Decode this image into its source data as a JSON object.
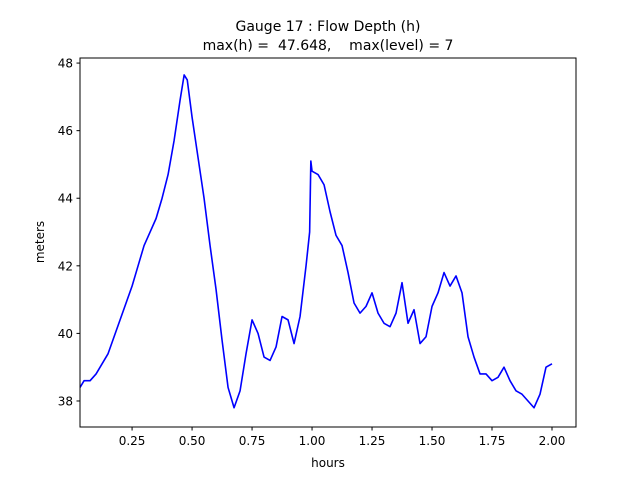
{
  "chart_data": {
    "type": "line",
    "title": "Gauge 17 : Flow Depth (h)",
    "subtitle": "max(h) =  47.648,    max(level) = 7",
    "x_label": "hours",
    "y_label": "meters",
    "color": "#0000ff",
    "x": [
      0.033,
      0.05,
      0.075,
      0.1,
      0.125,
      0.15,
      0.175,
      0.2,
      0.225,
      0.25,
      0.275,
      0.3,
      0.325,
      0.35,
      0.375,
      0.4,
      0.425,
      0.45,
      0.467,
      0.48,
      0.5,
      0.525,
      0.55,
      0.575,
      0.6,
      0.625,
      0.65,
      0.675,
      0.7,
      0.725,
      0.75,
      0.775,
      0.8,
      0.825,
      0.85,
      0.875,
      0.9,
      0.925,
      0.95,
      0.975,
      0.99,
      0.995,
      1.0,
      1.025,
      1.05,
      1.075,
      1.1,
      1.125,
      1.15,
      1.175,
      1.2,
      1.225,
      1.25,
      1.275,
      1.3,
      1.325,
      1.35,
      1.375,
      1.4,
      1.425,
      1.45,
      1.475,
      1.5,
      1.525,
      1.55,
      1.575,
      1.6,
      1.625,
      1.65,
      1.675,
      1.7,
      1.725,
      1.75,
      1.775,
      1.8,
      1.825,
      1.85,
      1.875,
      1.9,
      1.925,
      1.95,
      1.975,
      2.0
    ],
    "values": [
      38.4,
      38.6,
      38.6,
      38.8,
      39.1,
      39.4,
      39.9,
      40.4,
      40.9,
      41.4,
      42.0,
      42.6,
      43.0,
      43.4,
      44.0,
      44.7,
      45.7,
      46.9,
      47.648,
      47.5,
      46.4,
      45.2,
      44.0,
      42.6,
      41.3,
      39.8,
      38.4,
      37.8,
      38.3,
      39.4,
      40.4,
      40.0,
      39.3,
      39.2,
      39.6,
      40.5,
      40.4,
      39.7,
      40.5,
      42.0,
      43.0,
      45.1,
      44.8,
      44.7,
      44.4,
      43.6,
      42.9,
      42.6,
      41.8,
      40.9,
      40.6,
      40.8,
      41.2,
      40.6,
      40.3,
      40.2,
      40.6,
      41.5,
      40.3,
      40.7,
      39.7,
      39.9,
      40.8,
      41.2,
      41.8,
      41.4,
      41.7,
      41.2,
      39.9,
      39.3,
      38.8,
      38.8,
      38.6,
      38.7,
      39.0,
      38.6,
      38.3,
      38.2,
      38.0,
      37.8,
      38.2,
      39.0,
      39.1
    ],
    "xlim": [
      0.033,
      2.1
    ],
    "ylim": [
      37.23,
      48.15
    ],
    "xticks": [
      0.25,
      {
        "value": 0.5,
        "label": "0.50"
      },
      0.75,
      {
        "value": 1.0,
        "label": "1.00"
      },
      1.25,
      {
        "value": 1.5,
        "label": "1.50"
      },
      1.75,
      {
        "value": 2.0,
        "label": "2.00"
      }
    ],
    "yticks": [
      38,
      40,
      42,
      44,
      46,
      48
    ]
  }
}
